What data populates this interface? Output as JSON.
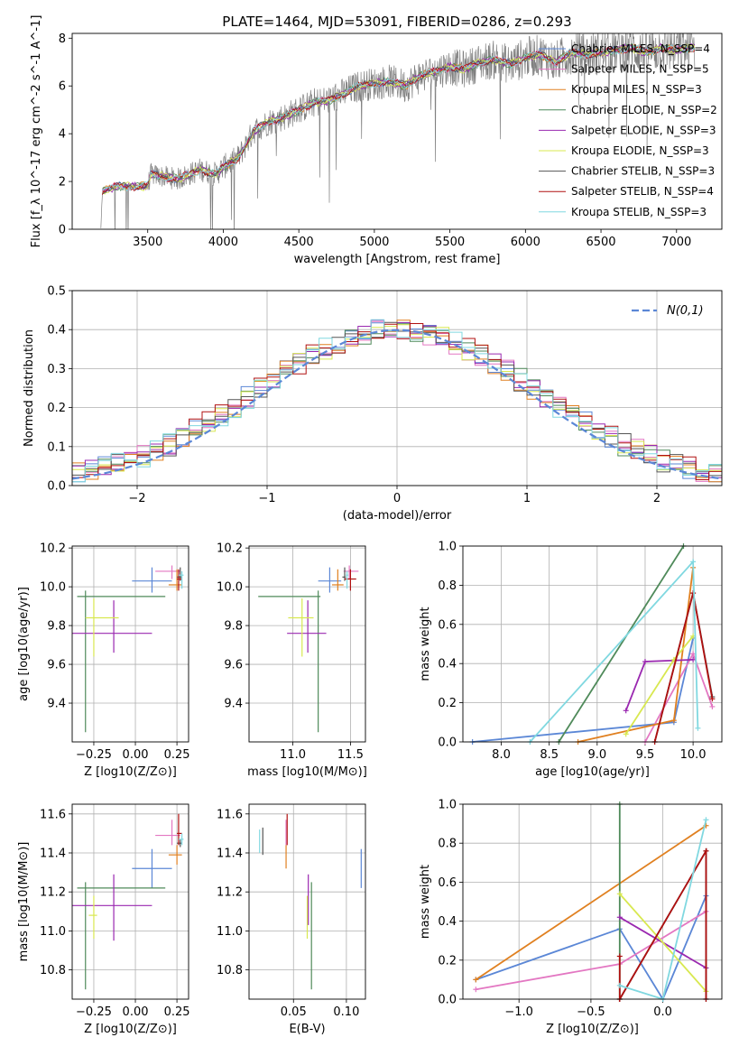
{
  "figure_title": "PLATE=1464, MJD=53091, FIBERID=0286, z=0.293",
  "chart_data": [
    {
      "id": "spectrum",
      "type": "line",
      "title": "PLATE=1464, MJD=53091, FIBERID=0286, z=0.293",
      "xlabel": "wavelength [Angstrom, rest frame]",
      "ylabel": "Flux [f_λ 10^-17 erg cm^-2 s^-1 A^-1]",
      "xlim": [
        3000,
        7300
      ],
      "ylim": [
        0,
        8.2
      ],
      "xticks": [
        3500,
        4000,
        4500,
        5000,
        5500,
        6000,
        6500,
        7000
      ],
      "yticks": [
        0,
        2,
        4,
        6,
        8
      ],
      "grid": false,
      "legend_position": "top-right",
      "data_shape": [
        [
          3190,
          0
        ],
        [
          3200,
          1.6
        ],
        [
          3300,
          1.8
        ],
        [
          3500,
          1.8
        ],
        [
          3520,
          2.3
        ],
        [
          3700,
          2.1
        ],
        [
          3850,
          2.5
        ],
        [
          3950,
          2.3
        ],
        [
          4000,
          2.6
        ],
        [
          4100,
          3.0
        ],
        [
          4200,
          4.1
        ],
        [
          4300,
          4.5
        ],
        [
          4400,
          4.7
        ],
        [
          4500,
          5.0
        ],
        [
          4600,
          5.3
        ],
        [
          4700,
          5.4
        ],
        [
          4800,
          5.7
        ],
        [
          4900,
          6.0
        ],
        [
          5000,
          6.1
        ],
        [
          5100,
          6.2
        ],
        [
          5200,
          6.0
        ],
        [
          5300,
          6.4
        ],
        [
          5400,
          6.6
        ],
        [
          5500,
          6.8
        ],
        [
          5600,
          6.7
        ],
        [
          5700,
          7.0
        ],
        [
          5800,
          7.1
        ],
        [
          5900,
          6.9
        ],
        [
          6000,
          7.2
        ],
        [
          6100,
          7.3
        ],
        [
          6200,
          7.0
        ],
        [
          6300,
          7.4
        ],
        [
          6400,
          7.3
        ],
        [
          6500,
          7.4
        ],
        [
          6600,
          7.5
        ],
        [
          6700,
          7.6
        ],
        [
          6800,
          7.4
        ],
        [
          6900,
          7.6
        ],
        [
          7000,
          7.5
        ],
        [
          7100,
          7.6
        ]
      ],
      "series": [
        {
          "name": "Chabrier MILES, N_SSP=4",
          "color": "#5b87d6"
        },
        {
          "name": "Salpeter MILES, N_SSP=5",
          "color": "#e377c2"
        },
        {
          "name": "Kroupa MILES, N_SSP=3",
          "color": "#e08020"
        },
        {
          "name": "Chabrier ELODIE, N_SSP=2",
          "color": "#4f8a5a"
        },
        {
          "name": "Salpeter ELODIE, N_SSP=3",
          "color": "#9a28b0"
        },
        {
          "name": "Kroupa ELODIE, N_SSP=3",
          "color": "#d8e850"
        },
        {
          "name": "Chabrier STELIB, N_SSP=3",
          "color": "#555555"
        },
        {
          "name": "Salpeter STELIB, N_SSP=4",
          "color": "#b01010"
        },
        {
          "name": "Kroupa STELIB, N_SSP=3",
          "color": "#80d8e0"
        }
      ]
    },
    {
      "id": "residuals",
      "type": "line",
      "xlabel": "(data-model)/error",
      "ylabel": "Normed distribution",
      "xlim": [
        -2.5,
        2.5
      ],
      "ylim": [
        0,
        0.5
      ],
      "xticks": [
        -2,
        -1,
        0,
        1,
        2
      ],
      "yticks": [
        0.0,
        0.1,
        0.2,
        0.3,
        0.4,
        0.5
      ],
      "grid": true,
      "legend_position": "top-right",
      "legend": "N(0,1)",
      "normal_curve": {
        "mean": 0,
        "sigma": 1,
        "color": "#5b87d6"
      }
    },
    {
      "id": "age_vs_Z",
      "type": "scatter",
      "xlabel": "Z [log10(Z/Z⊙)]",
      "ylabel": "age [log10(age/yr)]",
      "xlim": [
        -0.38,
        0.32
      ],
      "ylim": [
        9.2,
        10.21
      ],
      "xticks": [
        -0.25,
        0.0,
        0.25
      ],
      "yticks": [
        9.4,
        9.6,
        9.8,
        10.0,
        10.2
      ],
      "grid": true,
      "points": [
        {
          "color": "#5b87d6",
          "x": 0.1,
          "y": 10.03,
          "xerr": [
            0.12,
            0.12
          ],
          "yerr": [
            0.06,
            0.07
          ]
        },
        {
          "color": "#e377c2",
          "x": 0.22,
          "y": 10.08,
          "xerr": [
            0.1,
            0.05
          ],
          "yerr": [
            0.04,
            0.03
          ]
        },
        {
          "color": "#e08020",
          "x": 0.25,
          "y": 10.01,
          "xerr": [
            0.05,
            0.03
          ],
          "yerr": [
            0.03,
            0.08
          ]
        },
        {
          "color": "#4f8a5a",
          "x": -0.3,
          "y": 9.95,
          "xerr": [
            0.05,
            0.48
          ],
          "yerr": [
            0.7,
            0.03
          ]
        },
        {
          "color": "#9a28b0",
          "x": -0.13,
          "y": 9.76,
          "xerr": [
            0.25,
            0.23
          ],
          "yerr": [
            0.1,
            0.17
          ]
        },
        {
          "color": "#d8e850",
          "x": -0.25,
          "y": 9.84,
          "xerr": [
            0.05,
            0.15
          ],
          "yerr": [
            0.2,
            0.1
          ]
        },
        {
          "color": "#555555",
          "x": 0.27,
          "y": 10.05,
          "xerr": [
            0.02,
            0.01
          ],
          "yerr": [
            0.02,
            0.05
          ]
        },
        {
          "color": "#b01010",
          "x": 0.26,
          "y": 10.04,
          "xerr": [
            0.01,
            0.02
          ],
          "yerr": [
            0.06,
            0.05
          ]
        },
        {
          "color": "#80d8e0",
          "x": 0.28,
          "y": 10.06,
          "xerr": [
            0.02,
            0.01
          ],
          "yerr": [
            0.07,
            0.02
          ]
        }
      ]
    },
    {
      "id": "age_vs_mass",
      "type": "scatter",
      "xlabel": "mass [log10(M/M⊙)]",
      "ylabel": "",
      "xlim": [
        10.62,
        11.63
      ],
      "ylim": [
        9.2,
        10.21
      ],
      "xticks": [
        11.0,
        11.5
      ],
      "yticks": [
        9.4,
        9.6,
        9.8,
        10.0,
        10.2
      ],
      "grid": true,
      "points": [
        {
          "color": "#5b87d6",
          "x": 11.32,
          "y": 10.03,
          "xerr": [
            0.1,
            0.1
          ],
          "yerr": [
            0.06,
            0.07
          ]
        },
        {
          "color": "#e377c2",
          "x": 11.49,
          "y": 10.08,
          "xerr": [
            0.05,
            0.08
          ],
          "yerr": [
            0.04,
            0.03
          ]
        },
        {
          "color": "#e08020",
          "x": 11.39,
          "y": 10.01,
          "xerr": [
            0.05,
            0.05
          ],
          "yerr": [
            0.03,
            0.08
          ]
        },
        {
          "color": "#4f8a5a",
          "x": 11.22,
          "y": 9.95,
          "xerr": [
            0.52,
            0.02
          ],
          "yerr": [
            0.7,
            0.03
          ]
        },
        {
          "color": "#9a28b0",
          "x": 11.13,
          "y": 9.76,
          "xerr": [
            0.18,
            0.16
          ],
          "yerr": [
            0.1,
            0.17
          ]
        },
        {
          "color": "#d8e850",
          "x": 11.08,
          "y": 9.84,
          "xerr": [
            0.12,
            0.1
          ],
          "yerr": [
            0.2,
            0.1
          ]
        },
        {
          "color": "#555555",
          "x": 11.45,
          "y": 10.05,
          "xerr": [
            0.02,
            0.01
          ],
          "yerr": [
            0.02,
            0.05
          ]
        },
        {
          "color": "#b01010",
          "x": 11.5,
          "y": 10.04,
          "xerr": [
            0.05,
            0.05
          ],
          "yerr": [
            0.06,
            0.05
          ]
        },
        {
          "color": "#80d8e0",
          "x": 11.47,
          "y": 10.06,
          "xerr": [
            0.01,
            0.01
          ],
          "yerr": [
            0.07,
            0.02
          ]
        }
      ]
    },
    {
      "id": "weight_vs_age",
      "type": "line",
      "xlabel": "age [log10(age/yr)]",
      "ylabel": "mass weight",
      "xlim": [
        7.6,
        10.3
      ],
      "ylim": [
        0,
        1.0
      ],
      "xticks": [
        8.0,
        8.5,
        9.0,
        9.5,
        10.0
      ],
      "yticks": [
        0.0,
        0.2,
        0.4,
        0.6,
        0.8,
        1.0
      ],
      "grid": true,
      "series": [
        {
          "color": "#5b87d6",
          "x": [
            7.7,
            9.8,
            10.0
          ],
          "y": [
            0.0,
            0.1,
            0.53
          ]
        },
        {
          "color": "#e377c2",
          "x": [
            9.5,
            10.0,
            10.2
          ],
          "y": [
            0.0,
            0.45,
            0.18
          ]
        },
        {
          "color": "#e08020",
          "x": [
            8.8,
            9.8,
            10.0
          ],
          "y": [
            0.0,
            0.11,
            0.89
          ]
        },
        {
          "color": "#4f8a5a",
          "x": [
            8.6,
            9.9
          ],
          "y": [
            0.0,
            1.0
          ]
        },
        {
          "color": "#9a28b0",
          "x": [
            9.3,
            9.5,
            10.0
          ],
          "y": [
            0.16,
            0.41,
            0.42
          ]
        },
        {
          "color": "#d8e850",
          "x": [
            9.3,
            9.8,
            10.0
          ],
          "y": [
            0.04,
            0.42,
            0.54
          ]
        },
        {
          "color": "#555555",
          "x": [
            9.6,
            10.0,
            10.2
          ],
          "y": [
            0.0,
            0.76,
            0.23
          ]
        },
        {
          "color": "#b01010",
          "x": [
            9.6,
            10.0,
            10.2
          ],
          "y": [
            0.0,
            0.76,
            0.22
          ]
        },
        {
          "color": "#80d8e0",
          "x": [
            8.3,
            10.0,
            10.05
          ],
          "y": [
            0.0,
            0.92,
            0.07
          ]
        }
      ]
    },
    {
      "id": "mass_vs_Z",
      "type": "scatter",
      "xlabel": "Z [log10(Z/Z⊙)]",
      "ylabel": "mass [log10(M/M⊙)]",
      "xlim": [
        -0.38,
        0.32
      ],
      "ylim": [
        10.65,
        11.65
      ],
      "xticks": [
        -0.25,
        0.0,
        0.25
      ],
      "yticks": [
        10.8,
        11.0,
        11.2,
        11.4,
        11.6
      ],
      "grid": true,
      "points": [
        {
          "color": "#5b87d6",
          "x": 0.1,
          "y": 11.32,
          "xerr": [
            0.12,
            0.12
          ],
          "yerr": [
            0.1,
            0.1
          ]
        },
        {
          "color": "#e377c2",
          "x": 0.22,
          "y": 11.49,
          "xerr": [
            0.1,
            0.05
          ],
          "yerr": [
            0.05,
            0.08
          ]
        },
        {
          "color": "#e08020",
          "x": 0.25,
          "y": 11.39,
          "xerr": [
            0.05,
            0.03
          ],
          "yerr": [
            0.05,
            0.05
          ]
        },
        {
          "color": "#4f8a5a",
          "x": -0.3,
          "y": 11.22,
          "xerr": [
            0.05,
            0.48
          ],
          "yerr": [
            0.52,
            0.03
          ]
        },
        {
          "color": "#9a28b0",
          "x": -0.13,
          "y": 11.13,
          "xerr": [
            0.25,
            0.23
          ],
          "yerr": [
            0.18,
            0.16
          ]
        },
        {
          "color": "#d8e850",
          "x": -0.25,
          "y": 11.08,
          "xerr": [
            0.03,
            0.02
          ],
          "yerr": [
            0.12,
            0.1
          ]
        },
        {
          "color": "#555555",
          "x": 0.27,
          "y": 11.45,
          "xerr": [
            0.02,
            0.01
          ],
          "yerr": [
            0.02,
            0.02
          ]
        },
        {
          "color": "#b01010",
          "x": 0.26,
          "y": 11.5,
          "xerr": [
            0.01,
            0.02
          ],
          "yerr": [
            0.06,
            0.1
          ]
        },
        {
          "color": "#80d8e0",
          "x": 0.28,
          "y": 11.47,
          "xerr": [
            0.02,
            0.01
          ],
          "yerr": [
            0.03,
            0.03
          ]
        }
      ]
    },
    {
      "id": "mass_vs_ebv",
      "type": "scatter",
      "xlabel": "E(B-V)",
      "ylabel": "",
      "xlim": [
        0.008,
        0.118
      ],
      "ylim": [
        10.65,
        11.65
      ],
      "xticks": [
        0.05,
        0.1
      ],
      "yticks": [
        10.8,
        11.0,
        11.2,
        11.4,
        11.6
      ],
      "grid": true,
      "points": [
        {
          "color": "#5b87d6",
          "x": 0.114,
          "y": 11.32,
          "yerr": [
            0.1,
            0.1
          ]
        },
        {
          "color": "#e377c2",
          "x": 0.043,
          "y": 11.49,
          "yerr": [
            0.05,
            0.08
          ]
        },
        {
          "color": "#e08020",
          "x": 0.043,
          "y": 11.39,
          "yerr": [
            0.07,
            0.05
          ]
        },
        {
          "color": "#4f8a5a",
          "x": 0.067,
          "y": 11.0,
          "yerr": [
            0.3,
            0.25
          ]
        },
        {
          "color": "#9a28b0",
          "x": 0.064,
          "y": 11.13,
          "yerr": [
            0.1,
            0.16
          ]
        },
        {
          "color": "#d8e850",
          "x": 0.063,
          "y": 11.08,
          "yerr": [
            0.12,
            0.1
          ]
        },
        {
          "color": "#555555",
          "x": 0.021,
          "y": 11.45,
          "yerr": [
            0.06,
            0.08
          ]
        },
        {
          "color": "#b01010",
          "x": 0.044,
          "y": 11.52,
          "yerr": [
            0.08,
            0.08
          ]
        },
        {
          "color": "#80d8e0",
          "x": 0.018,
          "y": 11.45,
          "yerr": [
            0.05,
            0.07
          ]
        }
      ]
    },
    {
      "id": "weight_vs_Z",
      "type": "line",
      "xlabel": "Z [log10(Z/Z⊙)]",
      "ylabel": "mass weight",
      "xlim": [
        -1.39,
        0.41
      ],
      "ylim": [
        0,
        1.0
      ],
      "xticks": [
        -1.0,
        -0.5,
        0.0
      ],
      "yticks": [
        0.0,
        0.2,
        0.4,
        0.6,
        0.8,
        1.0
      ],
      "grid": true,
      "series": [
        {
          "color": "#5b87d6",
          "x": [
            -1.3,
            -0.3,
            0.0,
            0.3
          ],
          "y": [
            0.1,
            0.36,
            0.0,
            0.53
          ]
        },
        {
          "color": "#e377c2",
          "x": [
            -1.3,
            -0.3,
            0.3
          ],
          "y": [
            0.05,
            0.18,
            0.45
          ]
        },
        {
          "color": "#e08020",
          "x": [
            -1.3,
            0.3
          ],
          "y": [
            0.1,
            0.89
          ]
        },
        {
          "color": "#4f8a5a",
          "x": [
            -0.3,
            -0.3
          ],
          "y": [
            0.0,
            1.0
          ]
        },
        {
          "color": "#9a28b0",
          "x": [
            -0.3,
            0.3
          ],
          "y": [
            0.42,
            0.16
          ]
        },
        {
          "color": "#d8e850",
          "x": [
            -0.3,
            0.3
          ],
          "y": [
            0.54,
            0.04
          ]
        },
        {
          "color": "#555555",
          "x": [
            -0.3,
            0.3,
            0.3
          ],
          "y": [
            0.0,
            0.76,
            0.0
          ]
        },
        {
          "color": "#b01010",
          "x": [
            -0.3,
            -0.3,
            0.3,
            0.3
          ],
          "y": [
            0.22,
            0.0,
            0.76,
            0.0
          ]
        },
        {
          "color": "#80d8e0",
          "x": [
            -0.3,
            0.0,
            0.3
          ],
          "y": [
            0.07,
            0.0,
            0.92
          ]
        }
      ]
    }
  ]
}
